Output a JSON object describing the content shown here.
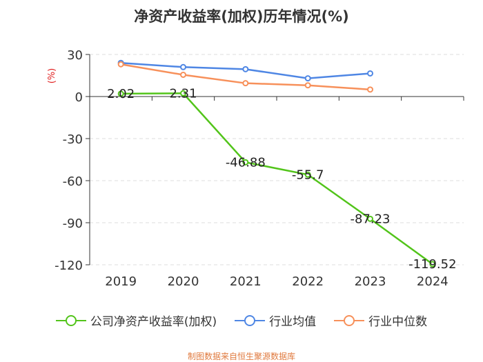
{
  "chart_data": {
    "type": "line",
    "title": "净资产收益率(加权)历年情况(%)",
    "ylabel": "(%)",
    "xlabel": "",
    "categories": [
      "2019",
      "2020",
      "2021",
      "2022",
      "2023",
      "2024"
    ],
    "yticks": [
      30,
      0,
      -30,
      -60,
      -90,
      -120
    ],
    "ylim": [
      -120,
      30
    ],
    "grid": true,
    "legend_position": "bottom",
    "series": [
      {
        "name": "公司净资产收益率(加权)",
        "color": "#52c41a",
        "values": [
          2.02,
          2.31,
          -46.88,
          -55.7,
          -87.23,
          -119.52
        ],
        "labels": [
          "2.02",
          "2.31",
          "-46.88",
          "-55.7",
          "-87.23",
          "-119.52"
        ]
      },
      {
        "name": "行业均值",
        "color": "#4e86e4",
        "values": [
          24,
          21,
          19.5,
          13,
          16.5,
          null
        ]
      },
      {
        "name": "行业中位数",
        "color": "#f7905a",
        "values": [
          23,
          15.5,
          9.5,
          8,
          5,
          null
        ]
      }
    ]
  },
  "source": {
    "text": "制图数据来自恒生聚源数据库",
    "color": "#e07a3f"
  },
  "ylabel_color": "#e02020"
}
